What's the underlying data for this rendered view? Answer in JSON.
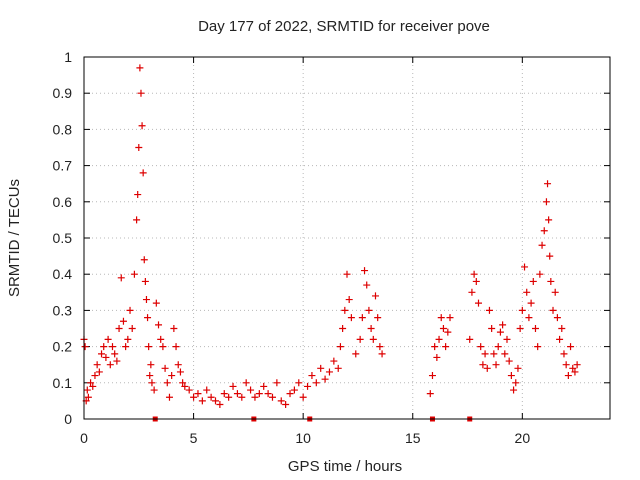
{
  "colors": {
    "series": "#dd0000",
    "axis": "#000000",
    "grid": "#b8b8b8",
    "text": "#222222"
  },
  "chart_data": {
    "type": "scatter",
    "title": "Day 177 of 2022, SRMTID for receiver pove",
    "xlabel": "GPS time / hours",
    "ylabel": "SRMTID / TECUs",
    "xlim": [
      0,
      24
    ],
    "ylim": [
      0,
      1
    ],
    "xticks": [
      0,
      5,
      10,
      15,
      20
    ],
    "xtick_labels": [
      "0",
      "5",
      "10",
      "15",
      "20"
    ],
    "yticks": [
      0,
      0.1,
      0.2,
      0.3,
      0.4,
      0.5,
      0.6,
      0.7,
      0.8,
      0.9,
      1
    ],
    "ytick_labels": [
      "0",
      "0.1",
      "0.2",
      "0.3",
      "0.4",
      "0.5",
      "0.6",
      "0.7",
      "0.8",
      "0.9",
      "1"
    ],
    "grid": true,
    "marker": "plus",
    "series": [
      {
        "name": "SRMTID",
        "x": [
          0.0,
          0.05,
          0.1,
          0.15,
          0.2,
          0.3,
          0.4,
          0.5,
          0.6,
          0.7,
          0.8,
          0.9,
          1.0,
          1.1,
          1.2,
          1.3,
          1.4,
          1.5,
          1.6,
          1.7,
          1.8,
          1.9,
          2.0,
          2.1,
          2.2,
          2.3,
          2.4,
          2.45,
          2.5,
          2.55,
          2.6,
          2.65,
          2.7,
          2.75,
          2.8,
          2.85,
          2.9,
          2.95,
          3.0,
          3.05,
          3.1,
          3.2,
          3.3,
          3.4,
          3.5,
          3.6,
          3.7,
          3.8,
          3.9,
          4.0,
          4.1,
          4.2,
          4.3,
          4.4,
          4.5,
          4.6,
          4.8,
          5.0,
          5.2,
          5.4,
          5.6,
          5.8,
          6.0,
          6.2,
          6.4,
          6.6,
          6.8,
          7.0,
          7.2,
          7.4,
          7.6,
          7.8,
          8.0,
          8.2,
          8.4,
          8.6,
          8.8,
          9.0,
          9.2,
          9.4,
          9.6,
          9.8,
          10.0,
          10.2,
          10.4,
          10.6,
          10.8,
          11.0,
          11.2,
          11.4,
          11.6,
          11.7,
          11.8,
          11.9,
          12.0,
          12.1,
          12.2,
          12.4,
          12.6,
          12.7,
          12.8,
          12.9,
          13.0,
          13.1,
          13.2,
          13.3,
          13.4,
          13.5,
          13.6,
          15.8,
          15.9,
          16.0,
          16.1,
          16.2,
          16.3,
          16.4,
          16.5,
          16.6,
          16.7,
          17.6,
          17.7,
          17.8,
          17.9,
          18.0,
          18.1,
          18.2,
          18.3,
          18.4,
          18.5,
          18.6,
          18.7,
          18.8,
          18.9,
          19.0,
          19.1,
          19.2,
          19.3,
          19.4,
          19.5,
          19.6,
          19.7,
          19.8,
          19.9,
          20.0,
          20.1,
          20.2,
          20.3,
          20.4,
          20.5,
          20.6,
          20.7,
          20.8,
          20.9,
          21.0,
          21.1,
          21.15,
          21.2,
          21.25,
          21.3,
          21.4,
          21.5,
          21.6,
          21.7,
          21.8,
          21.9,
          22.0,
          22.1,
          22.2,
          22.3,
          22.4,
          22.5
        ],
        "values": [
          0.22,
          0.2,
          0.05,
          0.08,
          0.06,
          0.1,
          0.09,
          0.12,
          0.15,
          0.13,
          0.18,
          0.2,
          0.17,
          0.22,
          0.15,
          0.2,
          0.18,
          0.16,
          0.25,
          0.39,
          0.27,
          0.2,
          0.22,
          0.3,
          0.25,
          0.4,
          0.55,
          0.62,
          0.75,
          0.97,
          0.9,
          0.81,
          0.68,
          0.44,
          0.38,
          0.33,
          0.28,
          0.2,
          0.12,
          0.15,
          0.1,
          0.08,
          0.32,
          0.26,
          0.22,
          0.2,
          0.14,
          0.1,
          0.06,
          0.12,
          0.25,
          0.2,
          0.15,
          0.13,
          0.1,
          0.09,
          0.08,
          0.06,
          0.07,
          0.05,
          0.08,
          0.06,
          0.05,
          0.04,
          0.07,
          0.06,
          0.09,
          0.07,
          0.06,
          0.1,
          0.08,
          0.06,
          0.07,
          0.09,
          0.07,
          0.06,
          0.1,
          0.05,
          0.04,
          0.07,
          0.08,
          0.1,
          0.06,
          0.09,
          0.12,
          0.1,
          0.14,
          0.11,
          0.13,
          0.16,
          0.14,
          0.2,
          0.25,
          0.3,
          0.4,
          0.33,
          0.28,
          0.18,
          0.22,
          0.28,
          0.41,
          0.37,
          0.3,
          0.25,
          0.22,
          0.34,
          0.28,
          0.2,
          0.18,
          0.07,
          0.12,
          0.2,
          0.17,
          0.22,
          0.28,
          0.25,
          0.2,
          0.24,
          0.28,
          0.22,
          0.35,
          0.4,
          0.38,
          0.32,
          0.2,
          0.15,
          0.18,
          0.14,
          0.3,
          0.25,
          0.18,
          0.15,
          0.2,
          0.24,
          0.26,
          0.18,
          0.22,
          0.16,
          0.12,
          0.08,
          0.1,
          0.14,
          0.25,
          0.3,
          0.42,
          0.35,
          0.28,
          0.32,
          0.38,
          0.25,
          0.2,
          0.4,
          0.48,
          0.52,
          0.6,
          0.65,
          0.55,
          0.45,
          0.38,
          0.3,
          0.35,
          0.28,
          0.22,
          0.25,
          0.18,
          0.15,
          0.12,
          0.2,
          0.14,
          0.13,
          0.15
        ]
      }
    ],
    "bottom_markers_x": [
      3.25,
      7.75,
      10.3,
      15.9,
      17.6
    ]
  }
}
